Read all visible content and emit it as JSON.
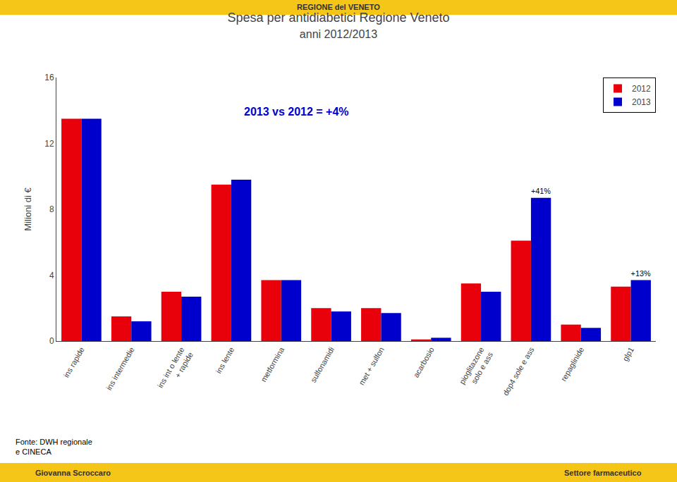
{
  "chart_data": {
    "type": "bar",
    "title": "Spesa per antidiabetici Regione Veneto",
    "subtitle": "anni 2012/2013",
    "categories": [
      "ins rapide",
      "ins intermedie",
      "ins int o lente\n+ rapide",
      "ins lente",
      "metformina",
      "sulfonamidi",
      "met + sulfon",
      "acarbosio",
      "pioglitazone\nsolo e ass",
      "dop4 sole e ass",
      "repaglinide",
      "glp1"
    ],
    "series": [
      {
        "name": "2012",
        "color": "#e8000a",
        "values": [
          13.5,
          1.5,
          3.0,
          9.5,
          3.7,
          2.0,
          2.0,
          0.1,
          3.5,
          6.1,
          1.0,
          3.3
        ]
      },
      {
        "name": "2013",
        "color": "#0000cc",
        "values": [
          13.5,
          1.2,
          2.7,
          9.8,
          3.7,
          1.8,
          1.7,
          0.2,
          3.0,
          8.7,
          0.8,
          3.7
        ]
      }
    ],
    "ylabel": "Milioni di €",
    "ylim": [
      0,
      16
    ],
    "yticks": [
      0,
      4,
      8,
      12,
      16
    ],
    "grid": false,
    "legend": "upper right",
    "annotations": [
      {
        "text": "+41%",
        "category": "dop4 sole e ass",
        "series": "2013"
      },
      {
        "text": "+13%",
        "category": "glp1",
        "series": "2013"
      },
      {
        "text": "2013 vs 2012 = +4%",
        "color": "#0000cc"
      }
    ],
    "source": "Fonte: DWH regionale\ne CINECA",
    "header": {
      "text": "REGIONE del VENETO",
      "color": "#f5c518"
    },
    "footer": {
      "left": "Giovanna Scroccaro",
      "right": "Settore farmaceutico",
      "color": "#f5c518"
    }
  }
}
